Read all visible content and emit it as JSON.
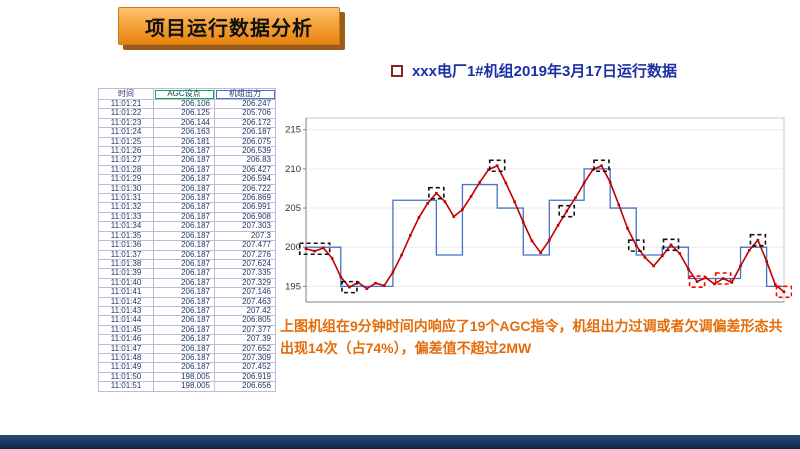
{
  "banner": {
    "title": "项目运行数据分析"
  },
  "caption": {
    "text": "上图机组在9分钟时间内响应了19个AGC指令，机组出力过调或者欠调偏差形态共出现14次（占74%），偏差值不超过2MW"
  },
  "colors": {
    "banner_orange": "#f5a33c",
    "banner_shadow": "#9a5a1c",
    "title_blue": "#1c2fa6",
    "caption_orange": "#e36c09",
    "table_border_purple": "#c3b7da",
    "table_text_navy": "#1f3864",
    "bottom_bar_navy": "#17365d",
    "series_agc_blue": "#4472c4",
    "series_output_red": "#c00000"
  },
  "table": {
    "headers": [
      "时间",
      "AGC设点",
      "机组出力"
    ],
    "rows": [
      [
        "11:01:21",
        "206.106",
        "206.247"
      ],
      [
        "11:01:22",
        "206.125",
        "205.706"
      ],
      [
        "11:01:23",
        "206.144",
        "206.172"
      ],
      [
        "11:01:24",
        "206.163",
        "206.187"
      ],
      [
        "11:01:25",
        "206.181",
        "206.075"
      ],
      [
        "11:01:26",
        "206.187",
        "206.539"
      ],
      [
        "11:01:27",
        "206.187",
        "206.83"
      ],
      [
        "11:01:28",
        "206.187",
        "206.427"
      ],
      [
        "11:01:29",
        "206.187",
        "206.594"
      ],
      [
        "11:01:30",
        "206.187",
        "206.722"
      ],
      [
        "11:01:31",
        "206.187",
        "206.869"
      ],
      [
        "11:01:32",
        "206.187",
        "206.991"
      ],
      [
        "11:01:33",
        "206.187",
        "206.908"
      ],
      [
        "11:01:34",
        "206.187",
        "207.303"
      ],
      [
        "11:01:35",
        "206.187",
        "207.3"
      ],
      [
        "11:01:36",
        "206.187",
        "207.477"
      ],
      [
        "11:01:37",
        "206.187",
        "207.276"
      ],
      [
        "11:01:38",
        "206.187",
        "207.624"
      ],
      [
        "11:01:39",
        "206.187",
        "207.335"
      ],
      [
        "11:01:40",
        "206.187",
        "207.329"
      ],
      [
        "11:01:41",
        "206.187",
        "207.146"
      ],
      [
        "11:01:42",
        "206.187",
        "207.463"
      ],
      [
        "11:01:43",
        "206.187",
        "207.42"
      ],
      [
        "11:01:44",
        "206.187",
        "206.805"
      ],
      [
        "11:01:45",
        "206.187",
        "207.377"
      ],
      [
        "11:01:46",
        "206.187",
        "207.39"
      ],
      [
        "11:01:47",
        "206.187",
        "207.652"
      ],
      [
        "11:01:48",
        "206.187",
        "207.309"
      ],
      [
        "11:01:49",
        "206.187",
        "207.452"
      ],
      [
        "11:01:50",
        "198.005",
        "206.919"
      ],
      [
        "11:01:51",
        "198.005",
        "206.656"
      ]
    ]
  },
  "chart_data": {
    "type": "line",
    "title": "xxx电厂1#机组2019年3月17日运行数据",
    "xlabel": "",
    "ylabel": "",
    "ylim": [
      193,
      216.5
    ],
    "yticks": [
      195,
      200,
      205,
      210,
      215
    ],
    "grid": true,
    "legend_position": "none",
    "series": [
      {
        "name": "AGC设点",
        "color": "#4472c4",
        "style": "step",
        "values": [
          200,
          200,
          200,
          200,
          195,
          195,
          195,
          195,
          195,
          195,
          206,
          206,
          206,
          206,
          206,
          199,
          199,
          199,
          208,
          208,
          208,
          208,
          205,
          205,
          205,
          199,
          199,
          199,
          206,
          206,
          206,
          206,
          210,
          210,
          210,
          205,
          205,
          205,
          199,
          199,
          199,
          200,
          200,
          200,
          196,
          196,
          196,
          196,
          196,
          196,
          200,
          200,
          200,
          195,
          195,
          195
        ]
      },
      {
        "name": "机组出力",
        "color": "#c00000",
        "style": "line-markers",
        "values": [
          199.8,
          199.5,
          199.9,
          198.6,
          196.2,
          194.9,
          195.5,
          194.7,
          195.4,
          195.1,
          196.8,
          199.0,
          201.5,
          203.8,
          205.6,
          206.9,
          205.8,
          203.9,
          204.8,
          206.5,
          208.3,
          209.9,
          210.4,
          208.2,
          205.8,
          203.2,
          200.8,
          199.3,
          200.9,
          202.8,
          204.6,
          206.3,
          208.2,
          209.9,
          210.4,
          208.3,
          205.4,
          202.4,
          200.2,
          198.7,
          197.6,
          198.9,
          200.3,
          199.2,
          197.2,
          195.6,
          196.1,
          195.3,
          196.0,
          195.5,
          197.6,
          199.6,
          200.9,
          198.2,
          195.2,
          194.3
        ]
      }
    ],
    "highlights": [
      {
        "x": 1,
        "y": 199.8,
        "color": "#111111",
        "w": 30
      },
      {
        "x": 5,
        "y": 194.9,
        "color": "#111111"
      },
      {
        "x": 15,
        "y": 206.9,
        "color": "#111111"
      },
      {
        "x": 22,
        "y": 210.4,
        "color": "#111111"
      },
      {
        "x": 30,
        "y": 204.6,
        "color": "#111111"
      },
      {
        "x": 34,
        "y": 210.4,
        "color": "#111111"
      },
      {
        "x": 38,
        "y": 200.2,
        "color": "#111111"
      },
      {
        "x": 42,
        "y": 200.3,
        "color": "#111111"
      },
      {
        "x": 45,
        "y": 195.6,
        "color": "#ff0000"
      },
      {
        "x": 48,
        "y": 196.0,
        "color": "#ff0000"
      },
      {
        "x": 52,
        "y": 200.9,
        "color": "#111111"
      },
      {
        "x": 55,
        "y": 194.3,
        "color": "#ff0000"
      }
    ]
  }
}
